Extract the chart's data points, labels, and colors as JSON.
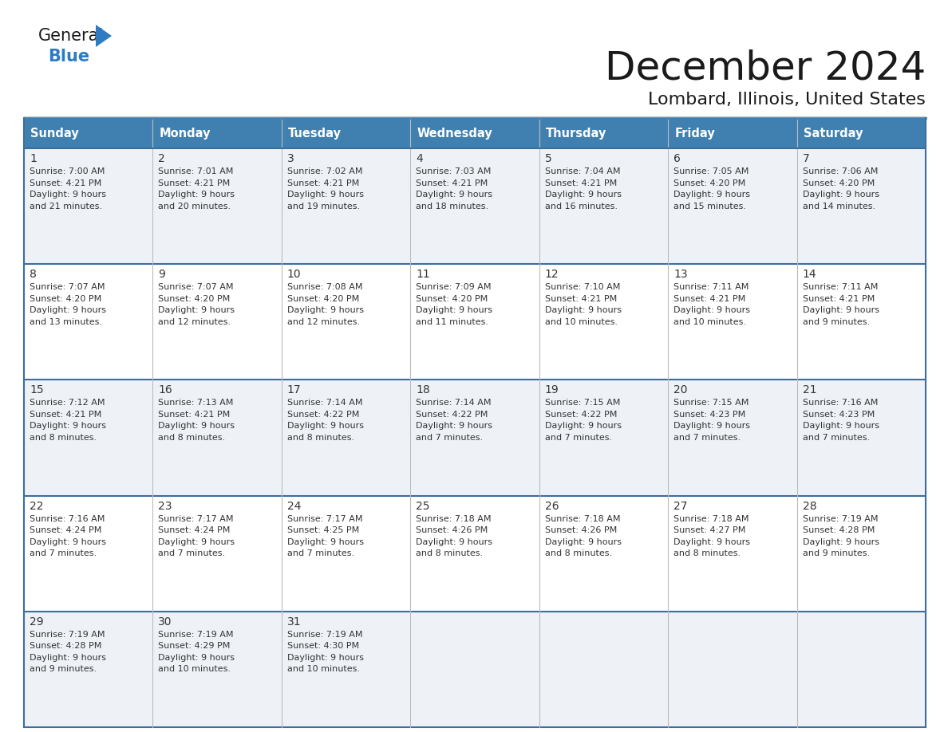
{
  "title": "December 2024",
  "subtitle": "Lombard, Illinois, United States",
  "header_bg": "#4080b0",
  "header_text": "#ffffff",
  "cell_bg_odd": "#eef2f7",
  "cell_bg_even": "#ffffff",
  "row_sep_color": "#3a6ea0",
  "grid_line_color": "#bbbbbb",
  "day_names": [
    "Sunday",
    "Monday",
    "Tuesday",
    "Wednesday",
    "Thursday",
    "Friday",
    "Saturday"
  ],
  "days": [
    {
      "day": 1,
      "col": 0,
      "row": 0,
      "sunrise": "7:00 AM",
      "sunset": "4:21 PM",
      "daylight_h": "9 hours",
      "daylight_m": "and 21 minutes."
    },
    {
      "day": 2,
      "col": 1,
      "row": 0,
      "sunrise": "7:01 AM",
      "sunset": "4:21 PM",
      "daylight_h": "9 hours",
      "daylight_m": "and 20 minutes."
    },
    {
      "day": 3,
      "col": 2,
      "row": 0,
      "sunrise": "7:02 AM",
      "sunset": "4:21 PM",
      "daylight_h": "9 hours",
      "daylight_m": "and 19 minutes."
    },
    {
      "day": 4,
      "col": 3,
      "row": 0,
      "sunrise": "7:03 AM",
      "sunset": "4:21 PM",
      "daylight_h": "9 hours",
      "daylight_m": "and 18 minutes."
    },
    {
      "day": 5,
      "col": 4,
      "row": 0,
      "sunrise": "7:04 AM",
      "sunset": "4:21 PM",
      "daylight_h": "9 hours",
      "daylight_m": "and 16 minutes."
    },
    {
      "day": 6,
      "col": 5,
      "row": 0,
      "sunrise": "7:05 AM",
      "sunset": "4:20 PM",
      "daylight_h": "9 hours",
      "daylight_m": "and 15 minutes."
    },
    {
      "day": 7,
      "col": 6,
      "row": 0,
      "sunrise": "7:06 AM",
      "sunset": "4:20 PM",
      "daylight_h": "9 hours",
      "daylight_m": "and 14 minutes."
    },
    {
      "day": 8,
      "col": 0,
      "row": 1,
      "sunrise": "7:07 AM",
      "sunset": "4:20 PM",
      "daylight_h": "9 hours",
      "daylight_m": "and 13 minutes."
    },
    {
      "day": 9,
      "col": 1,
      "row": 1,
      "sunrise": "7:07 AM",
      "sunset": "4:20 PM",
      "daylight_h": "9 hours",
      "daylight_m": "and 12 minutes."
    },
    {
      "day": 10,
      "col": 2,
      "row": 1,
      "sunrise": "7:08 AM",
      "sunset": "4:20 PM",
      "daylight_h": "9 hours",
      "daylight_m": "and 12 minutes."
    },
    {
      "day": 11,
      "col": 3,
      "row": 1,
      "sunrise": "7:09 AM",
      "sunset": "4:20 PM",
      "daylight_h": "9 hours",
      "daylight_m": "and 11 minutes."
    },
    {
      "day": 12,
      "col": 4,
      "row": 1,
      "sunrise": "7:10 AM",
      "sunset": "4:21 PM",
      "daylight_h": "9 hours",
      "daylight_m": "and 10 minutes."
    },
    {
      "day": 13,
      "col": 5,
      "row": 1,
      "sunrise": "7:11 AM",
      "sunset": "4:21 PM",
      "daylight_h": "9 hours",
      "daylight_m": "and 10 minutes."
    },
    {
      "day": 14,
      "col": 6,
      "row": 1,
      "sunrise": "7:11 AM",
      "sunset": "4:21 PM",
      "daylight_h": "9 hours",
      "daylight_m": "and 9 minutes."
    },
    {
      "day": 15,
      "col": 0,
      "row": 2,
      "sunrise": "7:12 AM",
      "sunset": "4:21 PM",
      "daylight_h": "9 hours",
      "daylight_m": "and 8 minutes."
    },
    {
      "day": 16,
      "col": 1,
      "row": 2,
      "sunrise": "7:13 AM",
      "sunset": "4:21 PM",
      "daylight_h": "9 hours",
      "daylight_m": "and 8 minutes."
    },
    {
      "day": 17,
      "col": 2,
      "row": 2,
      "sunrise": "7:14 AM",
      "sunset": "4:22 PM",
      "daylight_h": "9 hours",
      "daylight_m": "and 8 minutes."
    },
    {
      "day": 18,
      "col": 3,
      "row": 2,
      "sunrise": "7:14 AM",
      "sunset": "4:22 PM",
      "daylight_h": "9 hours",
      "daylight_m": "and 7 minutes."
    },
    {
      "day": 19,
      "col": 4,
      "row": 2,
      "sunrise": "7:15 AM",
      "sunset": "4:22 PM",
      "daylight_h": "9 hours",
      "daylight_m": "and 7 minutes."
    },
    {
      "day": 20,
      "col": 5,
      "row": 2,
      "sunrise": "7:15 AM",
      "sunset": "4:23 PM",
      "daylight_h": "9 hours",
      "daylight_m": "and 7 minutes."
    },
    {
      "day": 21,
      "col": 6,
      "row": 2,
      "sunrise": "7:16 AM",
      "sunset": "4:23 PM",
      "daylight_h": "9 hours",
      "daylight_m": "and 7 minutes."
    },
    {
      "day": 22,
      "col": 0,
      "row": 3,
      "sunrise": "7:16 AM",
      "sunset": "4:24 PM",
      "daylight_h": "9 hours",
      "daylight_m": "and 7 minutes."
    },
    {
      "day": 23,
      "col": 1,
      "row": 3,
      "sunrise": "7:17 AM",
      "sunset": "4:24 PM",
      "daylight_h": "9 hours",
      "daylight_m": "and 7 minutes."
    },
    {
      "day": 24,
      "col": 2,
      "row": 3,
      "sunrise": "7:17 AM",
      "sunset": "4:25 PM",
      "daylight_h": "9 hours",
      "daylight_m": "and 7 minutes."
    },
    {
      "day": 25,
      "col": 3,
      "row": 3,
      "sunrise": "7:18 AM",
      "sunset": "4:26 PM",
      "daylight_h": "9 hours",
      "daylight_m": "and 8 minutes."
    },
    {
      "day": 26,
      "col": 4,
      "row": 3,
      "sunrise": "7:18 AM",
      "sunset": "4:26 PM",
      "daylight_h": "9 hours",
      "daylight_m": "and 8 minutes."
    },
    {
      "day": 27,
      "col": 5,
      "row": 3,
      "sunrise": "7:18 AM",
      "sunset": "4:27 PM",
      "daylight_h": "9 hours",
      "daylight_m": "and 8 minutes."
    },
    {
      "day": 28,
      "col": 6,
      "row": 3,
      "sunrise": "7:19 AM",
      "sunset": "4:28 PM",
      "daylight_h": "9 hours",
      "daylight_m": "and 9 minutes."
    },
    {
      "day": 29,
      "col": 0,
      "row": 4,
      "sunrise": "7:19 AM",
      "sunset": "4:28 PM",
      "daylight_h": "9 hours",
      "daylight_m": "and 9 minutes."
    },
    {
      "day": 30,
      "col": 1,
      "row": 4,
      "sunrise": "7:19 AM",
      "sunset": "4:29 PM",
      "daylight_h": "9 hours",
      "daylight_m": "and 10 minutes."
    },
    {
      "day": 31,
      "col": 2,
      "row": 4,
      "sunrise": "7:19 AM",
      "sunset": "4:30 PM",
      "daylight_h": "9 hours",
      "daylight_m": "and 10 minutes."
    }
  ],
  "logo_color_general": "#1a1a1a",
  "logo_color_blue": "#2e7bc4",
  "logo_triangle_color": "#2e7bc4",
  "num_rows": 5,
  "num_cols": 7,
  "cell_text_color": "#333333",
  "day_num_color": "#333333",
  "title_color": "#1a1a1a",
  "subtitle_color": "#1a1a1a"
}
